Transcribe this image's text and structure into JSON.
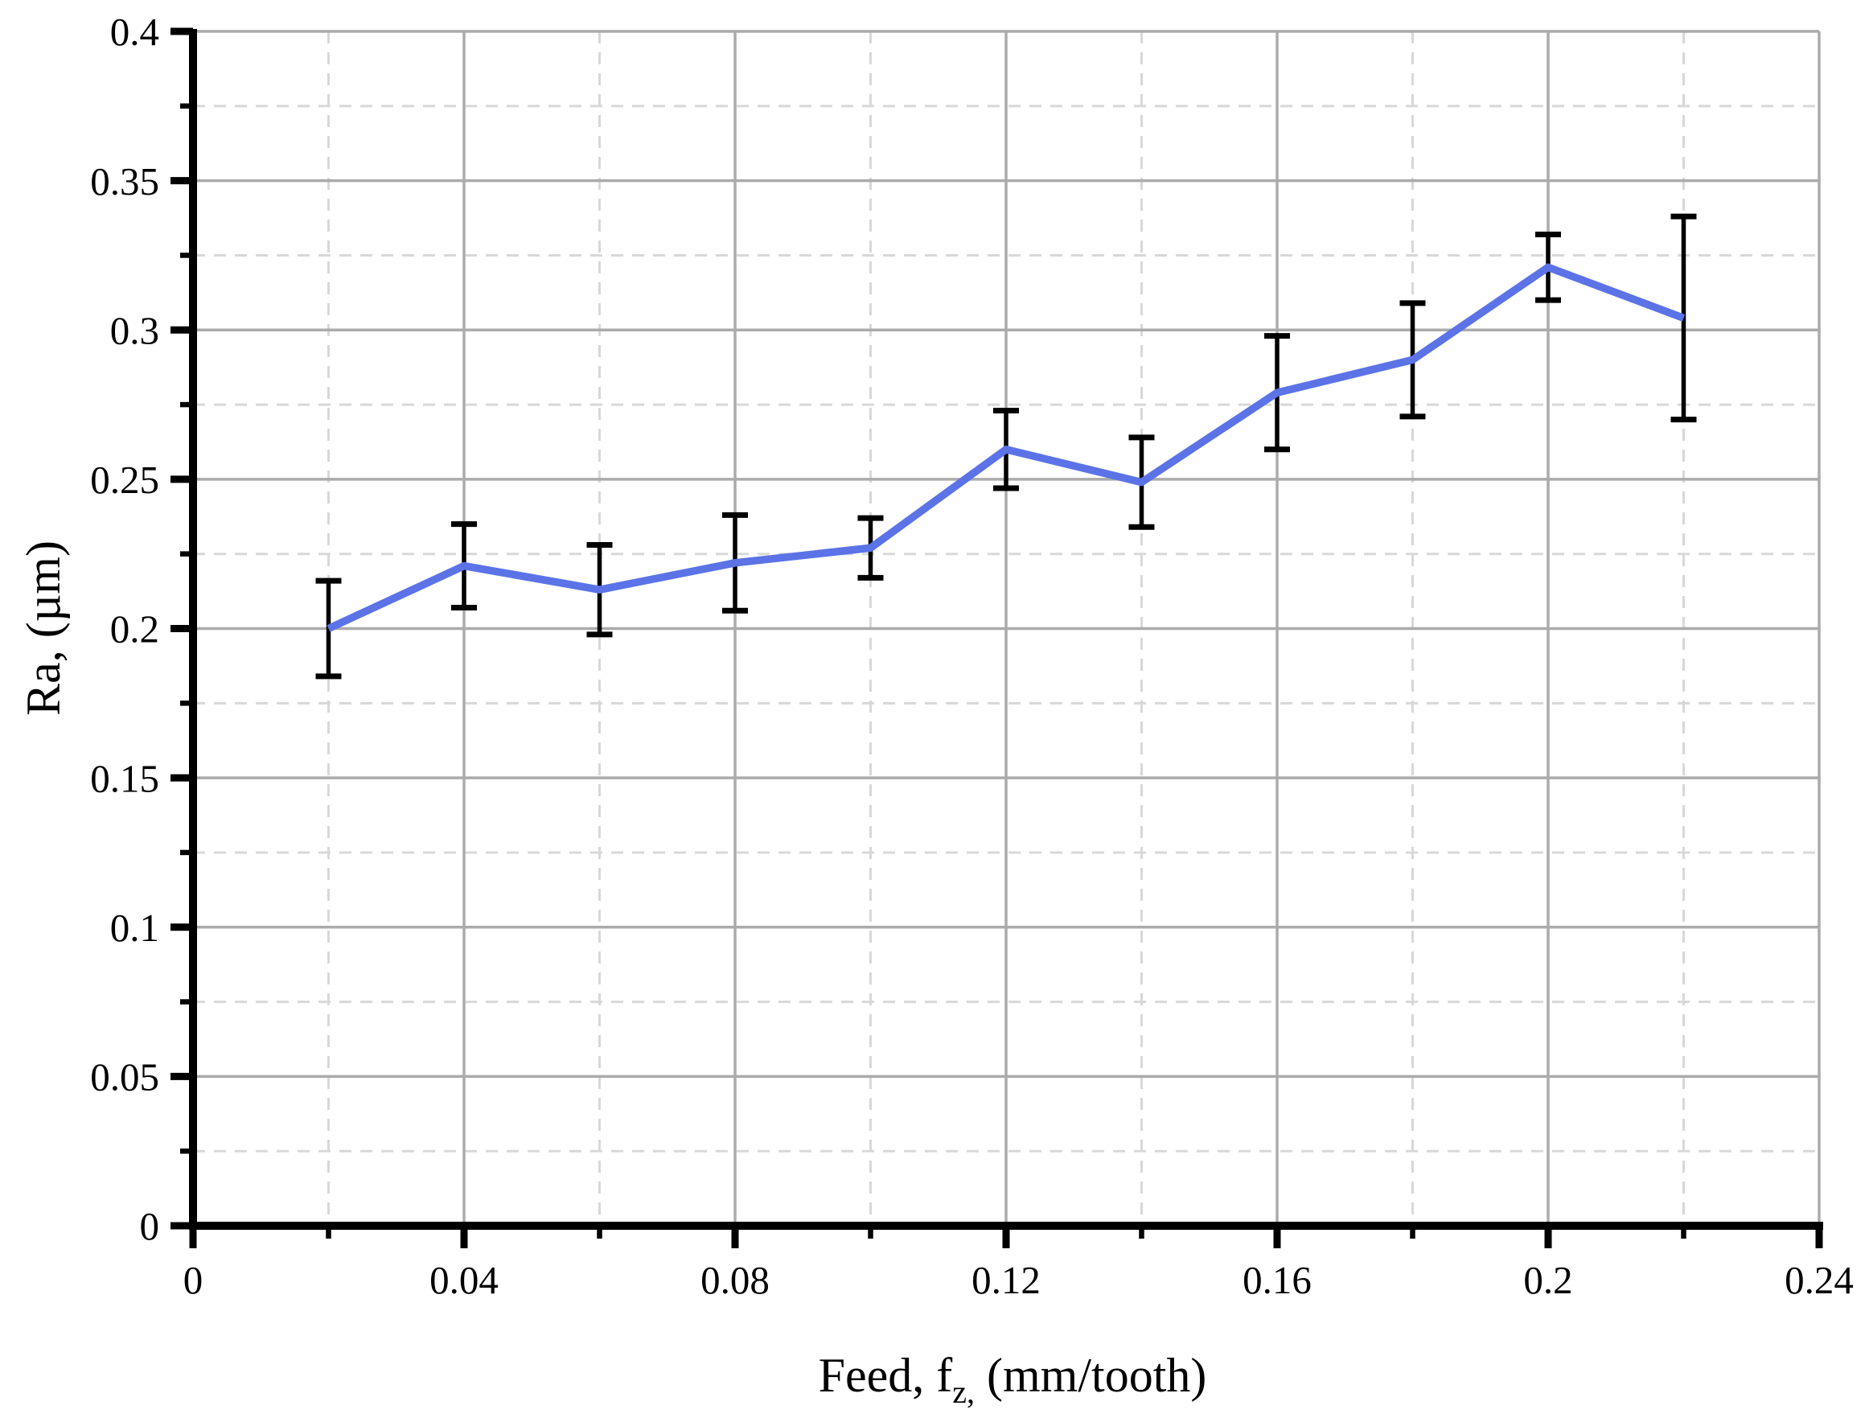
{
  "chart_data": {
    "type": "line",
    "title": "",
    "ylabel": "Ra, (µm)",
    "xlabel_parts": {
      "pre": "Feed, f",
      "sub": "z,",
      "post": " (mm/tooth)"
    },
    "series": [
      {
        "name": "Ra",
        "x": [
          0.02,
          0.04,
          0.06,
          0.08,
          0.1,
          0.12,
          0.14,
          0.16,
          0.18,
          0.2,
          0.22
        ],
        "y": [
          0.2,
          0.221,
          0.213,
          0.222,
          0.227,
          0.26,
          0.249,
          0.279,
          0.29,
          0.321,
          0.304
        ],
        "yerr": [
          0.016,
          0.014,
          0.015,
          0.016,
          0.01,
          0.013,
          0.015,
          0.019,
          0.019,
          0.011,
          0.034
        ]
      }
    ],
    "xlim": [
      0,
      0.24
    ],
    "ylim": [
      0,
      0.4
    ],
    "x_major_ticks": [
      0,
      0.04,
      0.08,
      0.12,
      0.16,
      0.2,
      0.24
    ],
    "x_major_labels": [
      "0",
      "0.04",
      "0.08",
      "0.12",
      "0.16",
      "0.2",
      "0.24"
    ],
    "x_minor_ticks": [
      0.02,
      0.06,
      0.1,
      0.14,
      0.18,
      0.22
    ],
    "y_major_ticks": [
      0,
      0.05,
      0.1,
      0.15,
      0.2,
      0.25,
      0.3,
      0.35,
      0.4
    ],
    "y_major_labels": [
      "0",
      "0.05",
      "0.1",
      "0.15",
      "0.2",
      "0.25",
      "0.3",
      "0.35",
      "0.4"
    ],
    "y_minor_ticks": [
      0.025,
      0.075,
      0.125,
      0.175,
      0.225,
      0.275,
      0.325,
      0.375
    ],
    "grid": {
      "major": "solid",
      "minor": "dashed"
    },
    "legend": "none",
    "colors": {
      "line": "#5b73e6",
      "error_bar": "#000000",
      "grid_major": "#ababab",
      "grid_minor": "#d8d8d8",
      "axis": "#000000",
      "background": "#ffffff"
    }
  }
}
